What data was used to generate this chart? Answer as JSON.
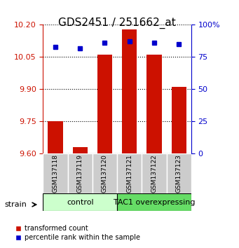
{
  "title": "GDS2451 / 251662_at",
  "samples": [
    "GSM137118",
    "GSM137119",
    "GSM137120",
    "GSM137121",
    "GSM137122",
    "GSM137123"
  ],
  "red_values": [
    9.75,
    9.63,
    10.06,
    10.18,
    10.06,
    9.91
  ],
  "blue_values": [
    83,
    82,
    86,
    87,
    86,
    85
  ],
  "y_min": 9.6,
  "y_max": 10.2,
  "y_ticks": [
    9.6,
    9.75,
    9.9,
    10.05,
    10.2
  ],
  "y_ticks_right": [
    0,
    25,
    50,
    75,
    100
  ],
  "bar_bottom": 9.6,
  "bar_width": 0.6,
  "bar_color": "#cc1100",
  "dot_color": "#0000cc",
  "control_samples": [
    0,
    1,
    2
  ],
  "tac1_samples": [
    3,
    4,
    5
  ],
  "control_label": "control",
  "tac1_label": "TAC1 overexpressing",
  "control_bg": "#ccffcc",
  "tac1_bg": "#66dd66",
  "sample_bg": "#cccccc",
  "legend_red_label": "transformed count",
  "legend_blue_label": "percentile rank within the sample",
  "strain_label": "strain",
  "xlabel": "",
  "left_axis_color": "#cc1100",
  "right_axis_color": "#0000cc"
}
